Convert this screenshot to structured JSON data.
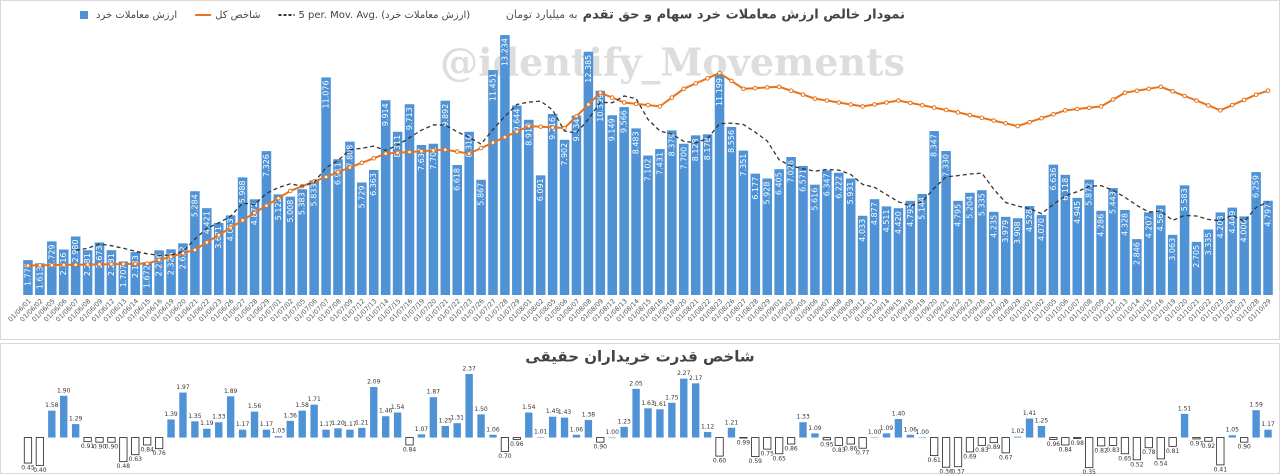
{
  "chart_data": [
    {
      "type": "bar",
      "title": "نمودار خالص ارزش معاملات خرد سهام و حق تقدم",
      "subtitle": "به میلیارد تومان",
      "watermark": "@identify_Movements",
      "legend": "top-left",
      "ylim": [
        0,
        14
      ],
      "categories": [
        "01/06/01",
        "01/06/02",
        "01/06/05",
        "01/06/06",
        "01/06/07",
        "01/06/08",
        "01/06/09",
        "01/06/12",
        "01/06/13",
        "01/06/14",
        "01/06/15",
        "01/06/16",
        "01/06/19",
        "01/06/20",
        "01/06/21",
        "01/06/22",
        "01/06/23",
        "01/06/26",
        "01/06/27",
        "01/06/28",
        "01/06/29",
        "01/07/01",
        "01/07/02",
        "01/07/05",
        "01/07/06",
        "01/07/07",
        "01/07/08",
        "01/07/09",
        "01/07/12",
        "01/07/13",
        "01/07/14",
        "01/07/15",
        "01/07/16",
        "01/07/19",
        "01/07/20",
        "01/07/21",
        "01/07/22",
        "01/07/23",
        "01/07/26",
        "01/07/27",
        "01/07/28",
        "01/07/29",
        "01/08/01",
        "01/08/02",
        "01/08/05",
        "01/08/06",
        "01/08/07",
        "01/08/08",
        "01/08/09",
        "01/08/12",
        "01/08/13",
        "01/08/14",
        "01/08/15",
        "01/08/16",
        "01/08/19",
        "01/08/20",
        "01/08/21",
        "01/08/22",
        "01/08/23",
        "01/08/26",
        "01/08/27",
        "01/08/28",
        "01/08/29",
        "01/09/01",
        "01/09/02",
        "01/09/05",
        "01/09/06",
        "01/09/07",
        "01/09/08",
        "01/09/09",
        "01/09/12",
        "01/09/13",
        "01/09/14",
        "01/09/15",
        "01/09/16",
        "01/09/19",
        "01/09/20",
        "01/09/21",
        "01/09/22",
        "01/09/23",
        "01/09/26",
        "01/09/27",
        "01/09/28",
        "01/09/29",
        "01/10/01",
        "01/10/02",
        "01/10/05",
        "01/10/06",
        "01/10/07",
        "01/10/08",
        "01/10/09",
        "01/10/12",
        "01/10/13",
        "01/10/14",
        "01/10/15",
        "01/10/16",
        "01/10/19",
        "01/10/20",
        "01/10/21",
        "01/10/22",
        "01/10/23",
        "01/10/26",
        "01/10/27",
        "01/10/28",
        "01/10/29"
      ],
      "series": [
        {
          "name": "ارزش معاملات خرد",
          "type": "bar",
          "color": "#4f93d6",
          "values": [
            1.776,
            1.613,
            2.729,
            2.316,
            2.98,
            2.281,
            2.673,
            2.281,
            1.707,
            2.183,
            1.672,
            2.276,
            2.325,
            2.632,
            5.284,
            4.421,
            3.671,
            4.053,
            5.988,
            4.872,
            7.326,
            5.122,
            5.008,
            5.383,
            5.833,
            11.076,
            6.911,
            7.808,
            5.729,
            6.363,
            9.914,
            8.311,
            9.713,
            7.637,
            7.701,
            9.892,
            6.618,
            8.31,
            5.867,
            11.451,
            13.234,
            9.644,
            8.919,
            6.091,
            9.216,
            7.902,
            9.134,
            12.385,
            10.399,
            9.149,
            9.566,
            8.483,
            7.102,
            7.431,
            8.379,
            7.7,
            8.128,
            8.178,
            11.199,
            8.556,
            7.351,
            6.177,
            5.928,
            6.405,
            7.026,
            6.571,
            5.616,
            6.347,
            6.222,
            5.931,
            4.033,
            4.877,
            4.511,
            4.42,
            4.793,
            5.144,
            8.347,
            7.33,
            4.795,
            5.204,
            5.335,
            4.235,
            3.979,
            3.908,
            4.528,
            4.07,
            6.636,
            6.118,
            4.945,
            5.872,
            4.286,
            5.443,
            4.328,
            2.846,
            4.207,
            4.563,
            3.063,
            5.583,
            2.705,
            3.335,
            4.203,
            4.449,
            4.0,
            6.259,
            4.797
          ],
          "value_labels": [
            "1.776",
            "1.613",
            "2.729",
            "2.316",
            "2.980",
            "2.281",
            "2.673",
            "2.281",
            "1.707",
            "2.183",
            "1.672",
            "2.276",
            "2.325",
            "2.632",
            "5.284",
            "4.421",
            "3.671",
            "4.053",
            "5.988",
            "4.872",
            "7.326",
            "5.122",
            "5.008",
            "5.383",
            "5.833",
            "11.076",
            "6.911",
            "7.808",
            "5.729",
            "6.363",
            "9.914",
            "8.311",
            "9.713",
            "7.637",
            "7.701",
            "9.892",
            "6.618",
            "8.310",
            "5.867",
            "11.451",
            "13.234",
            "9.644",
            "8.919",
            "6.091",
            "9.216",
            "7.902",
            "9.134",
            "12.385",
            "10.399",
            "9.149",
            "9.566",
            "8.483",
            "7.102",
            "7.431",
            "8.379",
            "7.700",
            "8.128",
            "8.178",
            "11.199",
            "8.556",
            "7.351",
            "6.177",
            "5.928",
            "6.405",
            "7.026",
            "6.571",
            "5.616",
            "6.347",
            "6.222",
            "5.931",
            "4.033",
            "4.877",
            "4.511",
            "4.420",
            "4.793",
            "5.144",
            "8.347",
            "7.330",
            "4.795",
            "5.204",
            "5.335",
            "4.235",
            "3.979",
            "3.908",
            "4.528",
            "4.070",
            "6.636",
            "6.118",
            "4.945",
            "5.872",
            "4.286",
            "5.443",
            "4.328",
            "2.846",
            "4.207",
            "4.563",
            "3.063",
            "5.583",
            "2.705",
            "3.335",
            "4.203",
            "4.449",
            "4.000",
            "6.259",
            "4.797"
          ]
        },
        {
          "name": "شاخص کل",
          "type": "line",
          "color": "#e8731c",
          "marker": true,
          "values": [
            1.5,
            1.51,
            1.52,
            1.53,
            1.54,
            1.55,
            1.56,
            1.57,
            1.58,
            1.59,
            1.6,
            1.78,
            1.95,
            2.13,
            2.3,
            2.68,
            3.05,
            3.43,
            3.8,
            4.18,
            4.55,
            4.93,
            5.3,
            5.54,
            5.78,
            6.01,
            6.25,
            6.49,
            6.73,
            6.96,
            7.2,
            7.24,
            7.28,
            7.32,
            7.36,
            7.4,
            7.3,
            7.2,
            7.48,
            7.76,
            8.04,
            8.32,
            8.6,
            8.57,
            8.53,
            8.5,
            9.1,
            9.7,
            10.3,
            10.05,
            9.8,
            9.73,
            9.67,
            9.6,
            10.05,
            10.5,
            10.77,
            11.03,
            11.3,
            10.9,
            10.5,
            10.53,
            10.57,
            10.6,
            10.4,
            10.2,
            10.0,
            9.9,
            9.8,
            9.7,
            9.6,
            9.7,
            9.8,
            9.9,
            9.78,
            9.66,
            9.54,
            9.42,
            9.3,
            9.16,
            9.02,
            8.88,
            8.74,
            8.6,
            8.8,
            9.0,
            9.2,
            9.4,
            9.47,
            9.53,
            9.6,
            9.95,
            10.3,
            10.4,
            10.5,
            10.6,
            10.37,
            10.13,
            9.9,
            9.65,
            9.4,
            9.67,
            9.93,
            10.2,
            10.4
          ]
        },
        {
          "name": "5 per. Mov. Avg. (ارزش معاملات خرد)",
          "type": "line",
          "color": "#333333",
          "dash": true,
          "values": [
            null,
            null,
            null,
            null,
            2.28,
            2.38,
            2.6,
            2.51,
            2.38,
            2.23,
            2.1,
            2.02,
            2.03,
            2.22,
            2.84,
            3.39,
            3.67,
            4.01,
            4.68,
            4.6,
            5.18,
            5.47,
            5.66,
            5.54,
            5.73,
            6.48,
            6.84,
            7.4,
            7.47,
            7.58,
            7.35,
            7.63,
            8.01,
            8.39,
            8.66,
            8.65,
            8.31,
            8.03,
            7.68,
            8.43,
            9.1,
            9.7,
            9.82,
            9.87,
            9.42,
            8.35,
            8.25,
            8.95,
            9.81,
            9.79,
            10.13,
            10.0,
            8.94,
            8.35,
            8.19,
            7.82,
            7.75,
            7.96,
            8.72,
            8.75,
            8.68,
            8.29,
            7.84,
            6.88,
            6.58,
            6.42,
            6.31,
            6.39,
            6.36,
            6.14,
            5.63,
            5.48,
            5.11,
            4.75,
            4.53,
            4.75,
            5.44,
            6.01,
            6.08,
            6.16,
            6.2,
            5.38,
            4.71,
            4.53,
            4.4,
            4.14,
            4.62,
            5.05,
            5.26,
            5.53,
            5.57,
            5.33,
            4.97,
            4.56,
            4.22,
            4.28,
            3.8,
            4.05,
            4.02,
            3.85,
            3.78,
            4.06,
            3.74,
            4.45,
            4.74
          ]
        }
      ]
    },
    {
      "type": "bar",
      "title": "شاخص قدرت خریداران حقیقی",
      "baseline": 1,
      "ylim": [
        0.3,
        2.5
      ],
      "color": "#4f93d6",
      "values": [
        0.45,
        0.4,
        1.58,
        1.9,
        1.29,
        0.91,
        0.9,
        0.9,
        0.48,
        0.63,
        0.84,
        0.76,
        1.39,
        1.97,
        1.35,
        1.19,
        1.33,
        1.89,
        1.17,
        1.56,
        1.17,
        1.03,
        1.36,
        1.58,
        1.71,
        1.17,
        1.2,
        1.17,
        1.21,
        2.09,
        1.46,
        1.54,
        0.84,
        1.07,
        1.87,
        1.25,
        1.31,
        2.37,
        1.5,
        1.06,
        0.7,
        0.96,
        1.54,
        1.01,
        1.45,
        1.43,
        1.06,
        1.38,
        0.9,
        1.0,
        1.23,
        2.05,
        1.63,
        1.61,
        1.75,
        2.27,
        2.17,
        1.12,
        0.6,
        1.21,
        0.99,
        0.59,
        0.75,
        0.65,
        0.86,
        1.33,
        1.09,
        0.95,
        0.83,
        0.86,
        0.77,
        1.0,
        1.09,
        1.4,
        1.06,
        1.0,
        0.61,
        0.36,
        0.37,
        0.69,
        0.83,
        0.89,
        0.67,
        1.02,
        1.41,
        1.25,
        0.96,
        0.84,
        0.98,
        0.35,
        0.82,
        0.83,
        0.65,
        0.52,
        0.78,
        0.54,
        0.81,
        1.51,
        0.97,
        0.92,
        0.41,
        1.05,
        0.9,
        1.59,
        1.17
      ],
      "value_labels": [
        "0.45",
        "0.40",
        "1.58",
        "1.90",
        "1.29",
        "0.91",
        "0.90",
        "0.90",
        "0.48",
        "0.63",
        "0.84",
        "0.76",
        "1.39",
        "1.97",
        "1.35",
        "1.19",
        "1.33",
        "1.89",
        "1.17",
        "1.56",
        "1.17",
        "1.03",
        "1.36",
        "1.58",
        "1.71",
        "1.17",
        "1.20",
        "1.17",
        "1.21",
        "2.09",
        "1.46",
        "1.54",
        "0.84",
        "1.07",
        "1.87",
        "1.25",
        "1.31",
        "2.37",
        "1.50",
        "1.06",
        "0.70",
        "0.96",
        "1.54",
        "1.01",
        "1.45",
        "1.43",
        "1.06",
        "1.38",
        "0.90",
        "1.00",
        "1.23",
        "2.05",
        "1.63",
        "1.61",
        "1.75",
        "2.27",
        "2.17",
        "1.12",
        "0.60",
        "1.21",
        "0.99",
        "0.59",
        "0.75",
        "0.65",
        "0.86",
        "1.33",
        "1.09",
        "0.95",
        "0.83",
        "0.86",
        "0.77",
        "1.00",
        "1.09",
        "1.40",
        "1.06",
        "1.00",
        "0.61",
        "0.36",
        "0.37",
        "0.69",
        "0.83",
        "0.89",
        "0.67",
        "1.02",
        "1.41",
        "1.25",
        "0.96",
        "0.84",
        "0.98",
        "0.35",
        "0.82",
        "0.83",
        "0.65",
        "0.52",
        "0.78",
        "0.54",
        "0.81",
        "1.51",
        "0.97",
        "0.92",
        "0.41",
        "1.05",
        "0.90",
        "1.59",
        "1.17"
      ]
    }
  ]
}
